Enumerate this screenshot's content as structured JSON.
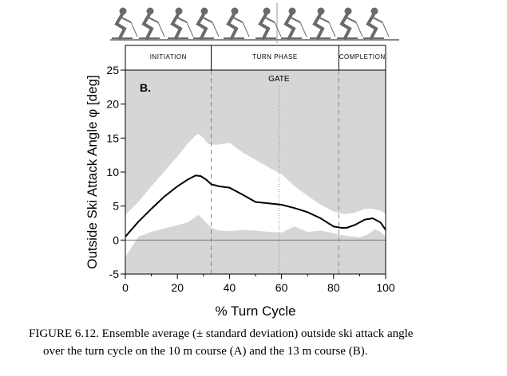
{
  "chart_data": {
    "type": "line",
    "panel_label": "B.",
    "xlabel": "% Turn Cycle",
    "ylabel": "Outside Ski Attack Angle φ [deg]",
    "xlim": [
      0,
      100
    ],
    "ylim": [
      -5,
      25
    ],
    "x_ticks": [
      0,
      20,
      40,
      60,
      80,
      100
    ],
    "y_ticks": [
      -5,
      0,
      5,
      10,
      15,
      20,
      25
    ],
    "phases": [
      {
        "label": "INITIATION",
        "start": 0,
        "end": 33
      },
      {
        "label": "TURN PHASE",
        "start": 33,
        "end": 82
      },
      {
        "label": "COMPLETION",
        "start": 82,
        "end": 100
      }
    ],
    "phase_boundaries": [
      33,
      82
    ],
    "gate": {
      "label": "GATE",
      "x": 59
    },
    "zero_line": true,
    "series": [
      {
        "role": "mean",
        "x": [
          0,
          5,
          10,
          15,
          20,
          24,
          27,
          29,
          31,
          33,
          36,
          40,
          45,
          50,
          55,
          60,
          65,
          70,
          75,
          80,
          83,
          85,
          88,
          92,
          95,
          98,
          100
        ],
        "values": [
          0.5,
          2.7,
          4.6,
          6.4,
          7.9,
          8.9,
          9.5,
          9.4,
          8.9,
          8.2,
          7.9,
          7.7,
          6.7,
          5.6,
          5.4,
          5.2,
          4.7,
          4.1,
          3.2,
          2.0,
          1.8,
          1.8,
          2.2,
          3.0,
          3.2,
          2.6,
          1.5
        ]
      },
      {
        "role": "upper",
        "x": [
          0,
          5,
          10,
          15,
          20,
          24,
          27,
          28,
          30,
          32,
          35,
          40,
          45,
          50,
          55,
          60,
          65,
          70,
          75,
          80,
          84,
          88,
          92,
          95,
          98,
          100
        ],
        "values": [
          3.7,
          5.6,
          7.9,
          10.1,
          12.3,
          14.2,
          15.4,
          15.6,
          15.0,
          14.1,
          14.0,
          14.3,
          12.9,
          11.8,
          10.7,
          9.7,
          7.9,
          6.5,
          5.2,
          4.2,
          3.8,
          4.0,
          4.6,
          4.6,
          4.3,
          3.9
        ]
      },
      {
        "role": "lower",
        "x": [
          0,
          5,
          10,
          15,
          20,
          24,
          27,
          28,
          30,
          33,
          36,
          40,
          45,
          50,
          55,
          60,
          65,
          70,
          75,
          80,
          85,
          90,
          93,
          96,
          98,
          100
        ],
        "values": [
          -2.5,
          0.5,
          1.2,
          1.7,
          2.2,
          2.6,
          3.4,
          3.7,
          3.0,
          1.8,
          1.4,
          1.3,
          1.5,
          1.4,
          1.2,
          1.1,
          2.0,
          1.2,
          1.4,
          1.0,
          0.6,
          0.4,
          0.8,
          1.6,
          1.2,
          0.5
        ]
      }
    ]
  },
  "caption": {
    "line1": "FIGURE 6.12.  Ensemble average (± standard deviation) outside ski attack angle",
    "line2": "over the turn cycle on the 10 m course (A) and the 13 m course (B)."
  },
  "colors": {
    "band_outer": "#d6d6d6",
    "band_inner": "#ffffff",
    "mean_line": "#000000",
    "skier_figure": "#6a6a6a"
  }
}
